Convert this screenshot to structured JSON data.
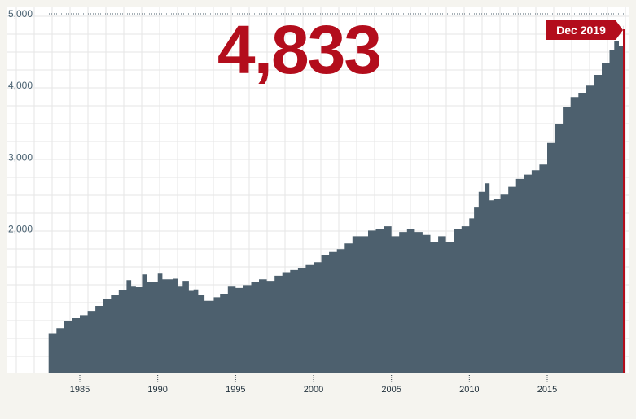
{
  "chart_data": {
    "type": "area",
    "highlight_value": "4,833",
    "end_tag": "Dec 2019",
    "ylim": [
      0,
      5000
    ],
    "xlim": [
      1982,
      2020
    ],
    "y_ticks": [
      {
        "value": 2000,
        "label": "2,000"
      },
      {
        "value": 3000,
        "label": "3,000"
      },
      {
        "value": 4000,
        "label": "4,000"
      },
      {
        "value": 5000,
        "label": "5,000"
      }
    ],
    "x_ticks": [
      {
        "value": 1985,
        "label": "1985"
      },
      {
        "value": 1990,
        "label": "1990"
      },
      {
        "value": 1995,
        "label": "1995"
      },
      {
        "value": 2000,
        "label": "2000"
      },
      {
        "value": 2005,
        "label": "2005"
      },
      {
        "value": 2010,
        "label": "2010"
      },
      {
        "value": 2015,
        "label": "2015"
      }
    ],
    "series": [
      {
        "x": [
          1983.0,
          1983.5,
          1984.0,
          1984.5,
          1985.0,
          1985.5,
          1986.0,
          1986.5,
          1987.0,
          1987.5,
          1988.0,
          1988.3,
          1988.6,
          1989.0,
          1989.3,
          1989.6,
          1990.0,
          1990.3,
          1990.6,
          1991.0,
          1991.3,
          1991.6,
          1992.0,
          1992.3,
          1992.6,
          1993.0,
          1993.3,
          1993.6,
          1994.0,
          1994.5,
          1995.0,
          1995.5,
          1996.0,
          1996.5,
          1997.0,
          1997.5,
          1998.0,
          1998.5,
          1999.0,
          1999.5,
          2000.0,
          2000.5,
          2001.0,
          2001.5,
          2002.0,
          2002.5,
          2003.0,
          2003.5,
          2004.0,
          2004.5,
          2005.0,
          2005.5,
          2006.0,
          2006.5,
          2007.0,
          2007.5,
          2008.0,
          2008.5,
          2009.0,
          2009.5,
          2010.0,
          2010.3,
          2010.6,
          2011.0,
          2011.3,
          2011.6,
          2012.0,
          2012.5,
          2013.0,
          2013.5,
          2014.0,
          2014.5,
          2015.0,
          2015.5,
          2016.0,
          2016.5,
          2017.0,
          2017.5,
          2018.0,
          2018.5,
          2019.0,
          2019.3,
          2019.6,
          2019.9
        ],
        "values": [
          550,
          620,
          720,
          760,
          800,
          860,
          930,
          1020,
          1080,
          1150,
          1290,
          1200,
          1190,
          1370,
          1260,
          1260,
          1380,
          1300,
          1300,
          1310,
          1200,
          1280,
          1140,
          1160,
          1080,
          1000,
          1000,
          1050,
          1100,
          1200,
          1180,
          1220,
          1260,
          1300,
          1280,
          1350,
          1400,
          1430,
          1460,
          1500,
          1540,
          1640,
          1680,
          1720,
          1800,
          1900,
          1900,
          1980,
          2000,
          2040,
          1900,
          1960,
          2000,
          1960,
          1920,
          1820,
          1900,
          1820,
          2000,
          2040,
          2150,
          2300,
          2520,
          2640,
          2400,
          2420,
          2480,
          2590,
          2700,
          2760,
          2820,
          2900,
          3200,
          3460,
          3700,
          3840,
          3900,
          4000,
          4150,
          4320,
          4500,
          4620,
          4550,
          4833
        ]
      }
    ],
    "colors": {
      "area": "#4d606e",
      "accent": "#b30d1c",
      "grid": "#e6e6e6",
      "background": "#f5f4ef",
      "plot_background": "#ffffff"
    }
  }
}
